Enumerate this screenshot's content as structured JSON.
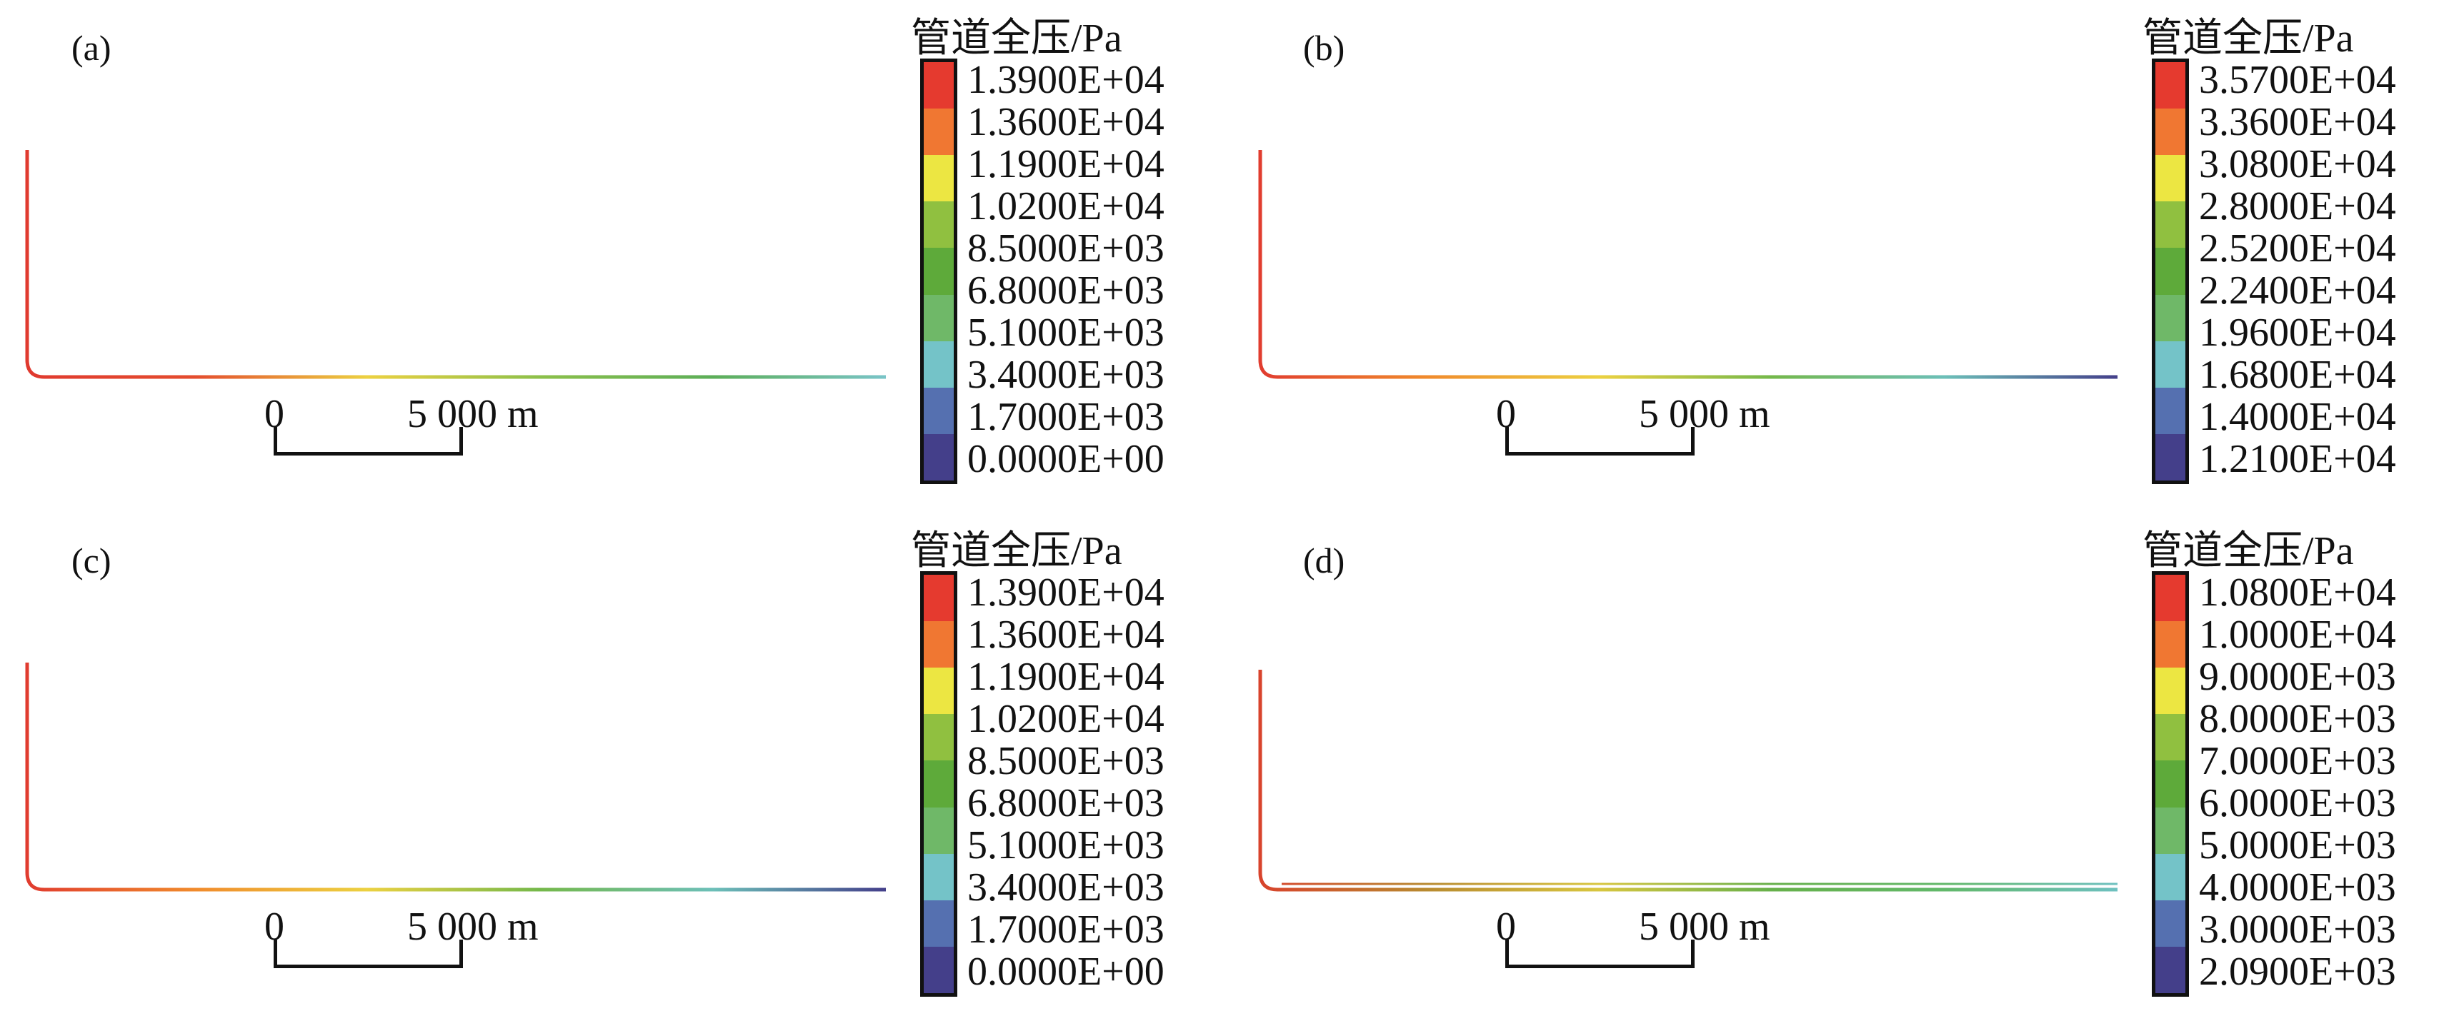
{
  "colors": {
    "legend_scale": [
      "#e53a2f",
      "#f07732",
      "#ece642",
      "#90c040",
      "#5eaa3a",
      "#6fb868",
      "#74c3c8",
      "#5570b0",
      "#443f8a"
    ]
  },
  "panels": [
    {
      "id": "a",
      "label": "(a)",
      "legend_title": "管道全压/Pa",
      "legend_labels": [
        "1.3900E+04",
        "1.3600E+04",
        "1.1900E+04",
        "1.0200E+04",
        "8.5000E+03",
        "6.8000E+03",
        "5.1000E+03",
        "3.4000E+03",
        "1.7000E+03",
        "0.0000E+00"
      ],
      "scale_start": "0",
      "scale_end": "5 000 m",
      "pipe_colors": [
        "#e0392f",
        "#e44c2e",
        "#ecd141",
        "#8cc04a",
        "#5cae58",
        "#79c4c8"
      ]
    },
    {
      "id": "b",
      "label": "(b)",
      "legend_title": "管道全压/Pa",
      "legend_labels": [
        "3.5700E+04",
        "3.3600E+04",
        "3.0800E+04",
        "2.8000E+04",
        "2.5200E+04",
        "2.2400E+04",
        "1.9600E+04",
        "1.6800E+04",
        "1.4000E+04",
        "1.2100E+04"
      ],
      "scale_start": "0",
      "scale_end": "5 000 m",
      "pipe_colors": [
        "#e0392f",
        "#f08a2c",
        "#ecd141",
        "#74b84a",
        "#6cbfb8",
        "#443f8a"
      ]
    },
    {
      "id": "c",
      "label": "(c)",
      "legend_title": "管道全压/Pa",
      "legend_labels": [
        "1.3900E+04",
        "1.3600E+04",
        "1.1900E+04",
        "1.0200E+04",
        "8.5000E+03",
        "6.8000E+03",
        "5.1000E+03",
        "3.4000E+03",
        "1.7000E+03",
        "0.0000E+00"
      ],
      "scale_start": "0",
      "scale_end": "5 000 m",
      "pipe_colors": [
        "#e0392f",
        "#f08a2c",
        "#ecd141",
        "#74b84a",
        "#6cbfb8",
        "#443f8a"
      ]
    },
    {
      "id": "d",
      "label": "(d)",
      "legend_title": "管道全压/Pa",
      "legend_labels": [
        "1.0800E+04",
        "1.0000E+04",
        "9.0000E+03",
        "8.0000E+03",
        "7.0000E+03",
        "6.0000E+03",
        "5.0000E+03",
        "4.0000E+03",
        "3.0000E+03",
        "2.0900E+03"
      ],
      "scale_start": "0",
      "scale_end": "5 000 m",
      "pipe_colors": [
        "#d9402c",
        "#b88a30",
        "#d8c640",
        "#66b04a",
        "#62b86a",
        "#6ec0c0"
      ]
    }
  ]
}
